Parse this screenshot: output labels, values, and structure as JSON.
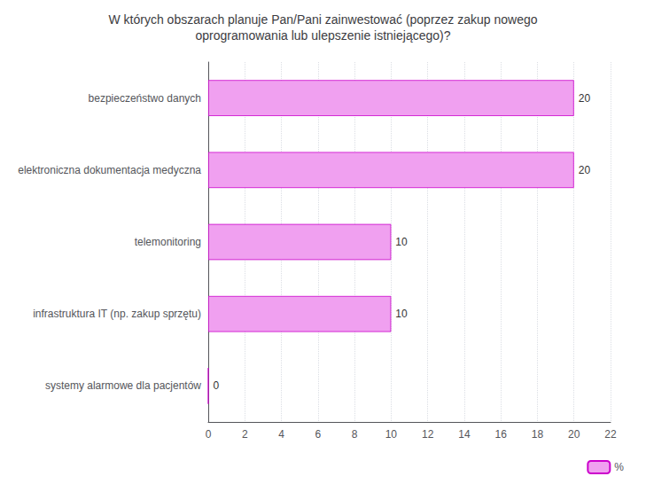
{
  "chart_data": {
    "type": "bar",
    "orientation": "horizontal",
    "title": "W których obszarach planuje Pan/Pani zainwestować (poprzez zakup nowego\noprogramowania lub ulepszenie istniejącego)?",
    "categories": [
      "systemy alarmowe dla pacjentów",
      "infrastruktura IT (np. zakup sprzętu)",
      "telemonitoring",
      "elektroniczna dokumentacja medyczna",
      "bezpieczeństwo danych"
    ],
    "series": [
      {
        "name": "%",
        "color": "#f0a0f0",
        "values": [
          0,
          10,
          10,
          20,
          20
        ]
      }
    ],
    "xlim": [
      0,
      22
    ],
    "xticks": [
      0,
      2,
      4,
      6,
      8,
      10,
      12,
      14,
      16,
      18,
      20,
      22
    ],
    "grid": true,
    "legend": "lower right",
    "data_labels": true
  }
}
